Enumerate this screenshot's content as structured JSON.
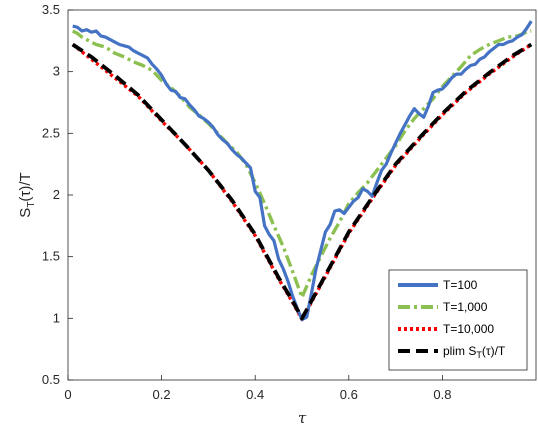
{
  "chart_data": {
    "type": "line",
    "xlabel": "τ",
    "ylabel": {
      "main": "S",
      "sub": "T",
      "rest": "(τ)/T"
    },
    "xlim": [
      0,
      1
    ],
    "ylim": [
      0.5,
      3.5
    ],
    "xticks": [
      0,
      0.2,
      0.4,
      0.6,
      0.8
    ],
    "xtick_labels": [
      "0",
      "0.2",
      "0.4",
      "0.6",
      "0.8"
    ],
    "yticks": [
      0.5,
      1,
      1.5,
      2,
      2.5,
      3,
      3.5
    ],
    "ytick_labels": [
      "0.5",
      "1",
      "1.5",
      "2",
      "2.5",
      "3",
      "3.5"
    ],
    "grid": false,
    "legend_position": "bottom-right",
    "series": [
      {
        "name": "T=100",
        "color": "#4472c4",
        "style": "solid",
        "x": [
          0.01,
          0.02,
          0.03,
          0.04,
          0.05,
          0.06,
          0.07,
          0.08,
          0.09,
          0.1,
          0.11,
          0.12,
          0.13,
          0.14,
          0.15,
          0.16,
          0.17,
          0.18,
          0.19,
          0.2,
          0.21,
          0.22,
          0.23,
          0.24,
          0.25,
          0.26,
          0.27,
          0.28,
          0.29,
          0.3,
          0.31,
          0.32,
          0.33,
          0.34,
          0.35,
          0.36,
          0.37,
          0.38,
          0.39,
          0.4,
          0.41,
          0.42,
          0.43,
          0.44,
          0.45,
          0.46,
          0.47,
          0.48,
          0.49,
          0.5,
          0.51,
          0.52,
          0.53,
          0.54,
          0.55,
          0.56,
          0.57,
          0.58,
          0.59,
          0.6,
          0.61,
          0.62,
          0.63,
          0.64,
          0.65,
          0.66,
          0.67,
          0.68,
          0.69,
          0.7,
          0.71,
          0.72,
          0.73,
          0.74,
          0.75,
          0.76,
          0.77,
          0.78,
          0.79,
          0.8,
          0.81,
          0.82,
          0.83,
          0.84,
          0.85,
          0.86,
          0.87,
          0.88,
          0.89,
          0.9,
          0.91,
          0.92,
          0.93,
          0.94,
          0.95,
          0.96,
          0.97,
          0.98,
          0.99
        ],
        "y": [
          3.37,
          3.36,
          3.33,
          3.34,
          3.32,
          3.33,
          3.29,
          3.28,
          3.26,
          3.24,
          3.22,
          3.21,
          3.2,
          3.17,
          3.15,
          3.13,
          3.11,
          3.06,
          3.02,
          2.97,
          2.9,
          2.85,
          2.84,
          2.79,
          2.78,
          2.73,
          2.69,
          2.64,
          2.62,
          2.59,
          2.55,
          2.49,
          2.45,
          2.42,
          2.37,
          2.33,
          2.3,
          2.26,
          2.22,
          2.03,
          1.98,
          1.75,
          1.68,
          1.63,
          1.48,
          1.4,
          1.3,
          1.18,
          1.08,
          0.99,
          1.01,
          1.2,
          1.4,
          1.55,
          1.7,
          1.76,
          1.87,
          1.88,
          1.85,
          1.9,
          1.95,
          1.98,
          2.05,
          2.03,
          1.99,
          2.1,
          2.2,
          2.25,
          2.34,
          2.42,
          2.5,
          2.57,
          2.64,
          2.7,
          2.66,
          2.63,
          2.72,
          2.83,
          2.85,
          2.86,
          2.9,
          2.95,
          2.98,
          2.98,
          3.02,
          3.05,
          3.06,
          3.1,
          3.12,
          3.16,
          3.19,
          3.22,
          3.22,
          3.24,
          3.25,
          3.28,
          3.3,
          3.35,
          3.41
        ]
      },
      {
        "name": "T=1,000",
        "color": "#8cc152",
        "style": "dashdot",
        "x": [
          0.01,
          0.02,
          0.03,
          0.04,
          0.05,
          0.06,
          0.08,
          0.1,
          0.12,
          0.14,
          0.16,
          0.18,
          0.2,
          0.22,
          0.24,
          0.26,
          0.28,
          0.3,
          0.32,
          0.34,
          0.36,
          0.38,
          0.4,
          0.42,
          0.44,
          0.46,
          0.48,
          0.5,
          0.52,
          0.54,
          0.56,
          0.58,
          0.6,
          0.62,
          0.64,
          0.66,
          0.68,
          0.7,
          0.72,
          0.74,
          0.76,
          0.78,
          0.8,
          0.82,
          0.84,
          0.86,
          0.88,
          0.9,
          0.92,
          0.94,
          0.96,
          0.98,
          0.99
        ],
        "y": [
          3.33,
          3.31,
          3.28,
          3.26,
          3.24,
          3.22,
          3.2,
          3.15,
          3.12,
          3.08,
          3.05,
          3.01,
          2.93,
          2.87,
          2.8,
          2.71,
          2.65,
          2.58,
          2.5,
          2.42,
          2.35,
          2.25,
          2.1,
          1.93,
          1.75,
          1.58,
          1.38,
          1.17,
          1.35,
          1.5,
          1.65,
          1.78,
          1.93,
          2.02,
          2.1,
          2.2,
          2.3,
          2.4,
          2.52,
          2.62,
          2.7,
          2.78,
          2.88,
          2.96,
          3.04,
          3.13,
          3.18,
          3.22,
          3.25,
          3.28,
          3.29,
          3.32,
          3.33
        ]
      },
      {
        "name": "T=10,000",
        "color": "#ff0000",
        "style": "dotted",
        "x": [
          0.01,
          0.05,
          0.1,
          0.15,
          0.2,
          0.25,
          0.3,
          0.35,
          0.4,
          0.45,
          0.48,
          0.5,
          0.52,
          0.55,
          0.6,
          0.65,
          0.7,
          0.75,
          0.8,
          0.85,
          0.9,
          0.95,
          0.99
        ],
        "y": [
          3.22,
          3.1,
          2.95,
          2.8,
          2.6,
          2.41,
          2.2,
          1.95,
          1.67,
          1.32,
          1.13,
          0.99,
          1.13,
          1.34,
          1.69,
          1.97,
          2.24,
          2.45,
          2.65,
          2.83,
          2.98,
          3.12,
          3.22
        ]
      },
      {
        "name": "plim S_T(τ)/T",
        "legend": {
          "main": "plim S",
          "sub": "T",
          "rest": "(τ)/T"
        },
        "color": "#000000",
        "style": "dashed",
        "x": [
          0.01,
          0.05,
          0.1,
          0.15,
          0.2,
          0.25,
          0.3,
          0.35,
          0.4,
          0.45,
          0.48,
          0.5,
          0.52,
          0.55,
          0.6,
          0.65,
          0.7,
          0.75,
          0.8,
          0.85,
          0.9,
          0.95,
          0.99
        ],
        "y": [
          3.22,
          3.12,
          2.97,
          2.81,
          2.61,
          2.41,
          2.2,
          1.96,
          1.68,
          1.33,
          1.14,
          1.0,
          1.14,
          1.35,
          1.7,
          1.98,
          2.25,
          2.46,
          2.66,
          2.84,
          2.99,
          3.13,
          3.22
        ]
      }
    ]
  }
}
